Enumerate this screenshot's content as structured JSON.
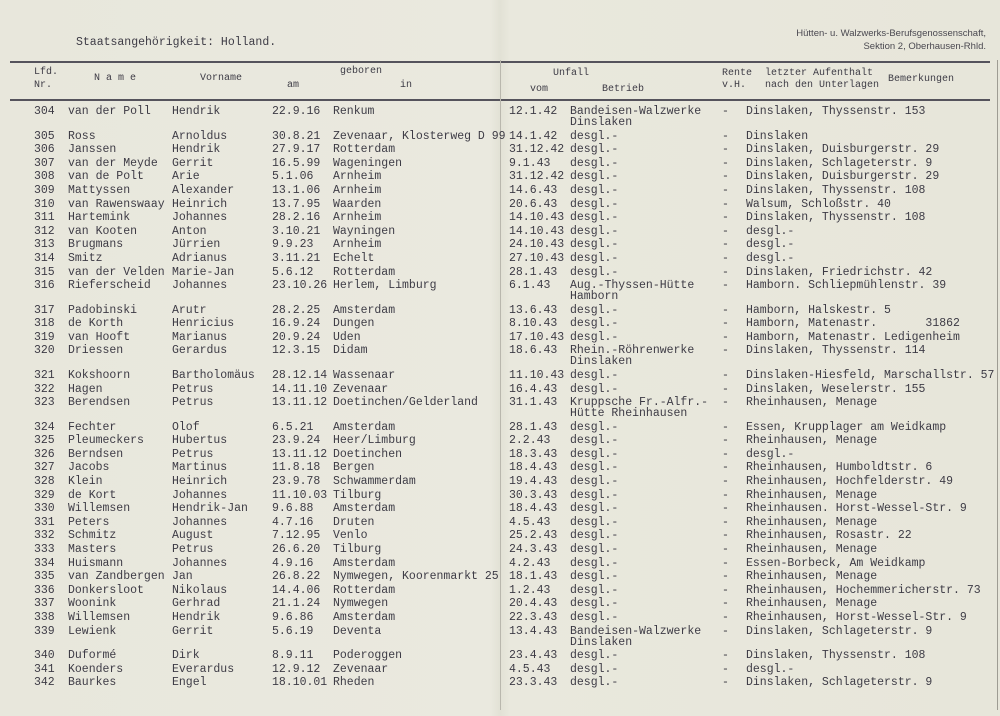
{
  "header": {
    "nationality": "Staatsangehörigkeit: Holland.",
    "stamp_line1": "Hütten- u. Walzwerks-Berufsgenossenschaft,",
    "stamp_line2": "Sektion 2, Oberhausen-Rhld."
  },
  "columns": {
    "lfd": "Lfd.",
    "nr": "Nr.",
    "name": "N a m e",
    "vorname": "Vorname",
    "geboren": "geboren",
    "am": "am",
    "in": "in",
    "unfall": "Unfall",
    "vom": "vom",
    "betrieb": "Betrieb",
    "rente": "Rente",
    "vh": "v.H.",
    "aufenthalt1": "letzter Aufenthalt",
    "aufenthalt2": "nach den Unterlagen",
    "bemerkungen": "Bemerkungen"
  },
  "rows": [
    {
      "nr": "304",
      "name": "van der Poll",
      "vorname": "Hendrik",
      "am": "22.9.16",
      "in": "Renkum",
      "vom": "12.1.42",
      "betrieb": "Bandeisen-Walzwerke",
      "betrieb2": "Dinslaken",
      "rente": "-",
      "aufenthalt": "Dinslaken, Thyssenstr. 153"
    },
    {
      "nr": "305",
      "name": "Ross",
      "vorname": "Arnoldus",
      "am": "30.8.21",
      "in": "Zevenaar, Klosterweg D 99",
      "vom": "14.1.42",
      "betrieb": "desgl.-",
      "rente": "-",
      "aufenthalt": "Dinslaken"
    },
    {
      "nr": "306",
      "name": "Janssen",
      "vorname": "Hendrik",
      "am": "27.9.17",
      "in": "Rotterdam",
      "vom": "31.12.42",
      "betrieb": "desgl.-",
      "rente": "-",
      "aufenthalt": "Dinslaken, Duisburgerstr. 29"
    },
    {
      "nr": "307",
      "name": "van der Meyde",
      "vorname": "Gerrit",
      "am": "16.5.99",
      "in": "Wageningen",
      "vom": "9.1.43",
      "betrieb": "desgl.-",
      "rente": "-",
      "aufenthalt": "Dinslaken, Schlageterstr. 9"
    },
    {
      "nr": "308",
      "name": "van de Polt",
      "vorname": "Arie",
      "am": "5.1.06",
      "in": "Arnheim",
      "vom": "31.12.42",
      "betrieb": "desgl.-",
      "rente": "-",
      "aufenthalt": "Dinslaken, Duisburgerstr. 29"
    },
    {
      "nr": "309",
      "name": "Mattyssen",
      "vorname": "Alexander",
      "am": "13.1.06",
      "in": "Arnheim",
      "vom": "14.6.43",
      "betrieb": "desgl.-",
      "rente": "-",
      "aufenthalt": "Dinslaken, Thyssenstr. 108"
    },
    {
      "nr": "310",
      "name": "van Rawenswaay",
      "vorname": "Heinrich",
      "am": "13.7.95",
      "in": "Waarden",
      "vom": "20.6.43",
      "betrieb": "desgl.-",
      "rente": "-",
      "aufenthalt": "Walsum, Schloßstr. 40"
    },
    {
      "nr": "311",
      "name": "Hartemink",
      "vorname": "Johannes",
      "am": "28.2.16",
      "in": "Arnheim",
      "vom": "14.10.43",
      "betrieb": "desgl.-",
      "rente": "-",
      "aufenthalt": "Dinslaken, Thyssenstr. 108"
    },
    {
      "nr": "312",
      "name": "van Kooten",
      "vorname": "Anton",
      "am": "3.10.21",
      "in": "Wayningen",
      "vom": "14.10.43",
      "betrieb": "desgl.-",
      "rente": "-",
      "aufenthalt": "desgl.-"
    },
    {
      "nr": "313",
      "name": "Brugmans",
      "vorname": "Jürrien",
      "am": "9.9.23",
      "in": "Arnheim",
      "vom": "24.10.43",
      "betrieb": "desgl.-",
      "rente": "-",
      "aufenthalt": "desgl.-"
    },
    {
      "nr": "314",
      "name": "Smitz",
      "vorname": "Adrianus",
      "am": "3.11.21",
      "in": "Echelt",
      "vom": "27.10.43",
      "betrieb": "desgl.-",
      "rente": "-",
      "aufenthalt": "desgl.-"
    },
    {
      "nr": "315",
      "name": "van der Velden",
      "vorname": "Marie-Jan",
      "am": "5.6.12",
      "in": "Rotterdam",
      "vom": "28.1.43",
      "betrieb": "desgl.-",
      "rente": "-",
      "aufenthalt": "Dinslaken, Friedrichstr. 42"
    },
    {
      "nr": "316",
      "name": "Rieferscheid",
      "vorname": "Johannes",
      "am": "23.10.26",
      "in": "Herlem, Limburg",
      "vom": "6.1.43",
      "betrieb": "Aug.-Thyssen-Hütte",
      "betrieb2": "Hamborn",
      "rente": "-",
      "aufenthalt": "Hamborn. Schliepmühlenstr. 39"
    },
    {
      "nr": "317",
      "name": "Padobinski",
      "vorname": "Arutr",
      "am": "28.2.25",
      "in": "Amsterdam",
      "vom": "13.6.43",
      "betrieb": "desgl.-",
      "rente": "-",
      "aufenthalt": "Hamborn, Halskestr. 5"
    },
    {
      "nr": "318",
      "name": "de Korth",
      "vorname": "Henricius",
      "am": "16.9.24",
      "in": "Dungen",
      "vom": "8.10.43",
      "betrieb": "desgl.-",
      "rente": "-",
      "aufenthalt": "Hamborn, Matenastr.       31862"
    },
    {
      "nr": "319",
      "name": "van Hooft",
      "vorname": "Marianus",
      "am": "20.9.24",
      "in": "Uden",
      "vom": "17.10.43",
      "betrieb": "desgl.-",
      "rente": "-",
      "aufenthalt": "Hamborn, Matenastr. Ledigenheim"
    },
    {
      "nr": "320",
      "name": "Driessen",
      "vorname": "Gerardus",
      "am": "12.3.15",
      "in": "Didam",
      "vom": "18.6.43",
      "betrieb": "Rhein.-Röhrenwerke",
      "betrieb2": "Dinslaken",
      "rente": "-",
      "aufenthalt": "Dinslaken, Thyssenstr. 114"
    },
    {
      "nr": "321",
      "name": "Kokshoorn",
      "vorname": "Bartholomäus",
      "am": "28.12.14",
      "in": "Wassenaar",
      "vom": "11.10.43",
      "betrieb": "desgl.-",
      "rente": "-",
      "aufenthalt": "Dinslaken-Hiesfeld, Marschallstr. 57"
    },
    {
      "nr": "322",
      "name": "Hagen",
      "vorname": "Petrus",
      "am": "14.11.10",
      "in": "Zevenaar",
      "vom": "16.4.43",
      "betrieb": "desgl.-",
      "rente": "-",
      "aufenthalt": "Dinslaken, Weselerstr. 155"
    },
    {
      "nr": "323",
      "name": "Berendsen",
      "vorname": "Petrus",
      "am": "13.11.12",
      "in": "Doetinchen/Gelderland",
      "vom": "31.1.43",
      "betrieb": "Kruppsche Fr.-Alfr.-",
      "betrieb2": "Hütte Rheinhausen",
      "rente": "-",
      "aufenthalt": "Rheinhausen, Menage"
    },
    {
      "nr": "324",
      "name": "Fechter",
      "vorname": "Olof",
      "am": "6.5.21",
      "in": "Amsterdam",
      "vom": "28.1.43",
      "betrieb": "desgl.-",
      "rente": "-",
      "aufenthalt": "Essen, Krupplager am Weidkamp"
    },
    {
      "nr": "325",
      "name": "Pleumeckers",
      "vorname": "Hubertus",
      "am": "23.9.24",
      "in": "Heer/Limburg",
      "vom": "2.2.43",
      "betrieb": "desgl.-",
      "rente": "-",
      "aufenthalt": "Rheinhausen, Menage"
    },
    {
      "nr": "326",
      "name": "Berndsen",
      "vorname": "Petrus",
      "am": "13.11.12",
      "in": "Doetinchen",
      "vom": "18.3.43",
      "betrieb": "desgl.-",
      "rente": "-",
      "aufenthalt": "desgl.-"
    },
    {
      "nr": "327",
      "name": "Jacobs",
      "vorname": "Martinus",
      "am": "11.8.18",
      "in": "Bergen",
      "vom": "18.4.43",
      "betrieb": "desgl.-",
      "rente": "-",
      "aufenthalt": "Rheinhausen, Humboldtstr. 6"
    },
    {
      "nr": "328",
      "name": "Klein",
      "vorname": "Heinrich",
      "am": "23.9.78",
      "in": "Schwammerdam",
      "vom": "19.4.43",
      "betrieb": "desgl.-",
      "rente": "-",
      "aufenthalt": "Rheinhausen, Hochfelderstr. 49"
    },
    {
      "nr": "329",
      "name": "de Kort",
      "vorname": "Johannes",
      "am": "11.10.03",
      "in": "Tilburg",
      "vom": "30.3.43",
      "betrieb": "desgl.-",
      "rente": "-",
      "aufenthalt": "Rheinhausen, Menage"
    },
    {
      "nr": "330",
      "name": "Willemsen",
      "vorname": "Hendrik-Jan",
      "am": "9.6.88",
      "in": "Amsterdam",
      "vom": "18.4.43",
      "betrieb": "desgl.-",
      "rente": "-",
      "aufenthalt": "Rheinhausen. Horst-Wessel-Str. 9"
    },
    {
      "nr": "331",
      "name": "Peters",
      "vorname": "Johannes",
      "am": "4.7.16",
      "in": "Druten",
      "vom": "4.5.43",
      "betrieb": "desgl.-",
      "rente": "-",
      "aufenthalt": "Rheinhausen, Menage"
    },
    {
      "nr": "332",
      "name": "Schmitz",
      "vorname": "August",
      "am": "7.12.95",
      "in": "Venlo",
      "vom": "25.2.43",
      "betrieb": "desgl.-",
      "rente": "-",
      "aufenthalt": "Rheinhausen, Rosastr. 22"
    },
    {
      "nr": "333",
      "name": "Masters",
      "vorname": "Petrus",
      "am": "26.6.20",
      "in": "Tilburg",
      "vom": "24.3.43",
      "betrieb": "desgl.-",
      "rente": "-",
      "aufenthalt": "Rheinhausen, Menage"
    },
    {
      "nr": "334",
      "name": "Huismann",
      "vorname": "Johannes",
      "am": "4.9.16",
      "in": "Amsterdam",
      "vom": "4.2.43",
      "betrieb": "desgl.-",
      "rente": "-",
      "aufenthalt": "Essen-Borbeck, Am Weidkamp"
    },
    {
      "nr": "335",
      "name": "van Zandbergen",
      "vorname": "Jan",
      "am": "26.8.22",
      "in": "Nymwegen, Koorenmarkt 25",
      "vom": "18.1.43",
      "betrieb": "desgl.-",
      "rente": "-",
      "aufenthalt": "Rheinhausen, Menage"
    },
    {
      "nr": "336",
      "name": "Donkersloot",
      "vorname": "Nikolaus",
      "am": "14.4.06",
      "in": "Rotterdam",
      "vom": "1.2.43",
      "betrieb": "desgl.-",
      "rente": "-",
      "aufenthalt": "Rheinhausen, Hochemmericherstr. 73"
    },
    {
      "nr": "337",
      "name": "Woonink",
      "vorname": "Gerhrad",
      "am": "21.1.24",
      "in": "Nymwegen",
      "vom": "20.4.43",
      "betrieb": "desgl.-",
      "rente": "-",
      "aufenthalt": "Rheinhausen, Menage"
    },
    {
      "nr": "338",
      "name": "Willemsen",
      "vorname": "Hendrik",
      "am": "9.6.86",
      "in": "Amsterdam",
      "vom": "22.3.43",
      "betrieb": "desgl.-",
      "rente": "-",
      "aufenthalt": "Rheinhausen, Horst-Wessel-Str. 9"
    },
    {
      "nr": "339",
      "name": "Lewienk",
      "vorname": "Gerrit",
      "am": "5.6.19",
      "in": "Deventa",
      "vom": "13.4.43",
      "betrieb": "Bandeisen-Walzwerke",
      "betrieb2": "Dinslaken",
      "rente": "-",
      "aufenthalt": "Dinslaken, Schlageterstr. 9"
    },
    {
      "nr": "340",
      "name": "Duformé",
      "vorname": "Dirk",
      "am": "8.9.11",
      "in": "Poderoggen",
      "vom": "23.4.43",
      "betrieb": "desgl.-",
      "rente": "-",
      "aufenthalt": "Dinslaken, Thyssenstr. 108"
    },
    {
      "nr": "341",
      "name": "Koenders",
      "vorname": "Everardus",
      "am": "12.9.12",
      "in": "Zevenaar",
      "vom": "4.5.43",
      "betrieb": "desgl.-",
      "rente": "-",
      "aufenthalt": "desgl.-"
    },
    {
      "nr": "342",
      "name": "Baurkes",
      "vorname": "Engel",
      "am": "18.10.01",
      "in": "Rheden",
      "vom": "23.3.43",
      "betrieb": "desgl.-",
      "rente": "-",
      "aufenthalt": "Dinslaken, Schlageterstr. 9"
    }
  ]
}
